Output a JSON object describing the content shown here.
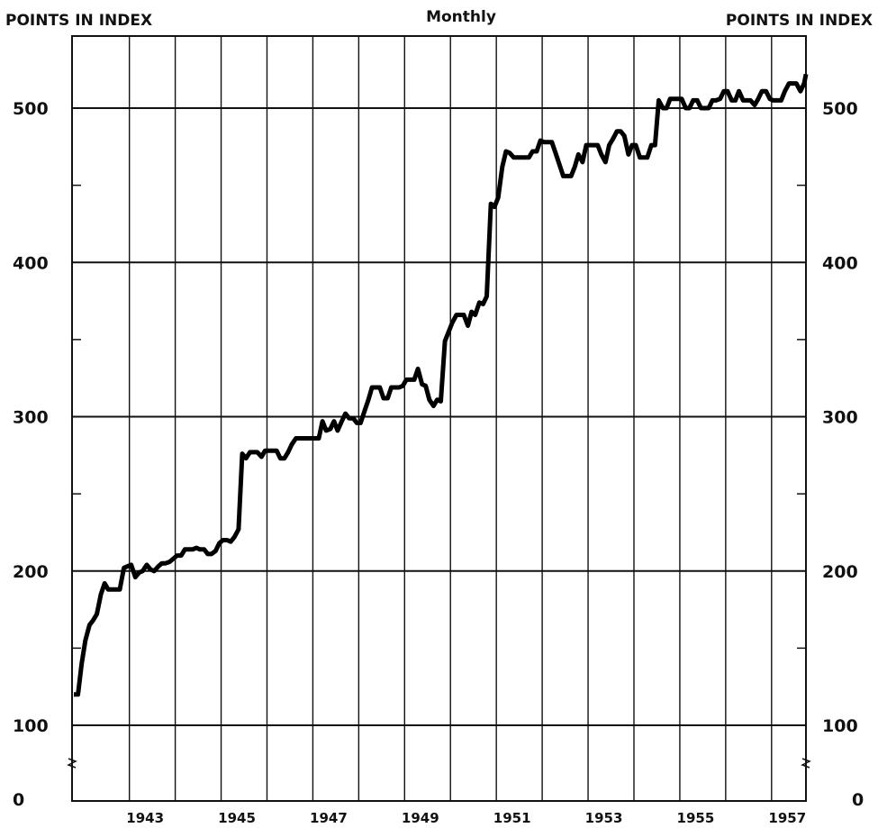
{
  "chart_data": {
    "type": "line",
    "title": "Monthly",
    "left_axis_label": "POINTS IN INDEX",
    "right_axis_label": "POINTS IN INDEX",
    "xlabel": "",
    "ylabel": "POINTS IN INDEX",
    "ylim": [
      0,
      540
    ],
    "xlim": [
      1941.75,
      1957.75
    ],
    "y_ticks": [
      "100",
      "200",
      "300",
      "400",
      "500"
    ],
    "y_zero_label": "0",
    "x_ticks": [
      "1943",
      "1945",
      "1947",
      "1949",
      "1951",
      "1953",
      "1955",
      "1957"
    ],
    "axis_break": true,
    "grid": true,
    "line_color": "#000000",
    "series": [
      {
        "points": [
          [
            1941.79,
            120
          ],
          [
            1941.88,
            120
          ],
          [
            1941.96,
            140
          ],
          [
            1942.04,
            155
          ],
          [
            1942.13,
            165
          ],
          [
            1942.21,
            168
          ],
          [
            1942.29,
            172
          ],
          [
            1942.38,
            185
          ],
          [
            1942.46,
            192
          ],
          [
            1942.54,
            188
          ],
          [
            1942.63,
            188
          ],
          [
            1942.71,
            188
          ],
          [
            1942.79,
            188
          ],
          [
            1942.88,
            202
          ],
          [
            1942.96,
            203
          ],
          [
            1943.04,
            204
          ],
          [
            1943.13,
            196
          ],
          [
            1943.21,
            199
          ],
          [
            1943.29,
            200
          ],
          [
            1943.38,
            204
          ],
          [
            1943.46,
            201
          ],
          [
            1943.54,
            200
          ],
          [
            1943.63,
            203
          ],
          [
            1943.71,
            205
          ],
          [
            1943.79,
            205
          ],
          [
            1943.88,
            206
          ],
          [
            1943.96,
            208
          ],
          [
            1944.04,
            210
          ],
          [
            1944.13,
            210
          ],
          [
            1944.21,
            214
          ],
          [
            1944.29,
            214
          ],
          [
            1944.38,
            214
          ],
          [
            1944.46,
            215
          ],
          [
            1944.54,
            214
          ],
          [
            1944.63,
            214
          ],
          [
            1944.71,
            211
          ],
          [
            1944.79,
            211
          ],
          [
            1944.88,
            213
          ],
          [
            1944.96,
            218
          ],
          [
            1945.04,
            220
          ],
          [
            1945.13,
            220
          ],
          [
            1945.21,
            219
          ],
          [
            1945.29,
            222
          ],
          [
            1945.38,
            227
          ],
          [
            1945.46,
            276
          ],
          [
            1945.54,
            273
          ],
          [
            1945.63,
            277
          ],
          [
            1945.71,
            277
          ],
          [
            1945.79,
            277
          ],
          [
            1945.88,
            274
          ],
          [
            1945.96,
            278
          ],
          [
            1946.04,
            278
          ],
          [
            1946.13,
            278
          ],
          [
            1946.21,
            278
          ],
          [
            1946.29,
            273
          ],
          [
            1946.38,
            273
          ],
          [
            1946.46,
            277
          ],
          [
            1946.54,
            282
          ],
          [
            1946.63,
            286
          ],
          [
            1946.71,
            286
          ],
          [
            1946.79,
            286
          ],
          [
            1946.88,
            286
          ],
          [
            1946.96,
            286
          ],
          [
            1947.04,
            286
          ],
          [
            1947.13,
            286
          ],
          [
            1947.21,
            297
          ],
          [
            1947.29,
            291
          ],
          [
            1947.38,
            292
          ],
          [
            1947.46,
            297
          ],
          [
            1947.54,
            291
          ],
          [
            1947.63,
            297
          ],
          [
            1947.71,
            302
          ],
          [
            1947.79,
            299
          ],
          [
            1947.88,
            299
          ],
          [
            1947.96,
            296
          ],
          [
            1948.04,
            296
          ],
          [
            1948.13,
            304
          ],
          [
            1948.21,
            311
          ],
          [
            1948.29,
            319
          ],
          [
            1948.38,
            319
          ],
          [
            1948.46,
            319
          ],
          [
            1948.54,
            312
          ],
          [
            1948.63,
            312
          ],
          [
            1948.71,
            319
          ],
          [
            1948.79,
            319
          ],
          [
            1948.88,
            319
          ],
          [
            1948.96,
            320
          ],
          [
            1949.04,
            324
          ],
          [
            1949.13,
            324
          ],
          [
            1949.21,
            324
          ],
          [
            1949.29,
            331
          ],
          [
            1949.38,
            321
          ],
          [
            1949.46,
            320
          ],
          [
            1949.54,
            311
          ],
          [
            1949.63,
            307
          ],
          [
            1949.71,
            311
          ],
          [
            1949.79,
            310
          ],
          [
            1949.88,
            349
          ],
          [
            1949.96,
            355
          ],
          [
            1950.04,
            361
          ],
          [
            1950.13,
            366
          ],
          [
            1950.21,
            366
          ],
          [
            1950.29,
            366
          ],
          [
            1950.38,
            359
          ],
          [
            1950.46,
            368
          ],
          [
            1950.54,
            366
          ],
          [
            1950.63,
            374
          ],
          [
            1950.71,
            373
          ],
          [
            1950.79,
            378
          ],
          [
            1950.88,
            438
          ],
          [
            1950.96,
            436
          ],
          [
            1951.04,
            442
          ],
          [
            1951.13,
            462
          ],
          [
            1951.21,
            472
          ],
          [
            1951.29,
            471
          ],
          [
            1951.38,
            468
          ],
          [
            1951.46,
            468
          ],
          [
            1951.54,
            468
          ],
          [
            1951.63,
            468
          ],
          [
            1951.71,
            468
          ],
          [
            1951.79,
            472
          ],
          [
            1951.88,
            472
          ],
          [
            1951.96,
            479
          ],
          [
            1952.04,
            478
          ],
          [
            1952.13,
            478
          ],
          [
            1952.21,
            478
          ],
          [
            1952.29,
            471
          ],
          [
            1952.38,
            463
          ],
          [
            1952.46,
            456
          ],
          [
            1952.54,
            456
          ],
          [
            1952.63,
            456
          ],
          [
            1952.71,
            462
          ],
          [
            1952.79,
            470
          ],
          [
            1952.88,
            465
          ],
          [
            1952.96,
            476
          ],
          [
            1953.04,
            476
          ],
          [
            1953.13,
            476
          ],
          [
            1953.21,
            476
          ],
          [
            1953.29,
            470
          ],
          [
            1953.38,
            465
          ],
          [
            1953.46,
            476
          ],
          [
            1953.54,
            480
          ],
          [
            1953.63,
            485
          ],
          [
            1953.71,
            485
          ],
          [
            1953.79,
            482
          ],
          [
            1953.88,
            470
          ],
          [
            1953.96,
            476
          ],
          [
            1954.04,
            476
          ],
          [
            1954.13,
            468
          ],
          [
            1954.21,
            468
          ],
          [
            1954.29,
            468
          ],
          [
            1954.38,
            476
          ],
          [
            1954.46,
            476
          ],
          [
            1954.54,
            505
          ],
          [
            1954.63,
            500
          ],
          [
            1954.71,
            500
          ],
          [
            1954.79,
            506
          ],
          [
            1954.88,
            506
          ],
          [
            1954.96,
            506
          ],
          [
            1955.04,
            506
          ],
          [
            1955.13,
            500
          ],
          [
            1955.21,
            500
          ],
          [
            1955.29,
            505
          ],
          [
            1955.38,
            505
          ],
          [
            1955.46,
            500
          ],
          [
            1955.54,
            500
          ],
          [
            1955.63,
            500
          ],
          [
            1955.71,
            505
          ],
          [
            1955.79,
            505
          ],
          [
            1955.88,
            506
          ],
          [
            1955.96,
            511
          ],
          [
            1956.04,
            511
          ],
          [
            1956.13,
            505
          ],
          [
            1956.21,
            505
          ],
          [
            1956.29,
            511
          ],
          [
            1956.38,
            505
          ],
          [
            1956.46,
            505
          ],
          [
            1956.54,
            505
          ],
          [
            1956.63,
            502
          ],
          [
            1956.71,
            506
          ],
          [
            1956.79,
            511
          ],
          [
            1956.88,
            511
          ],
          [
            1956.96,
            506
          ],
          [
            1957.04,
            505
          ],
          [
            1957.13,
            505
          ],
          [
            1957.21,
            505
          ],
          [
            1957.29,
            511
          ],
          [
            1957.38,
            516
          ],
          [
            1957.46,
            516
          ],
          [
            1957.54,
            516
          ],
          [
            1957.63,
            511
          ],
          [
            1957.71,
            516
          ],
          [
            1957.75,
            522
          ]
        ]
      }
    ]
  }
}
